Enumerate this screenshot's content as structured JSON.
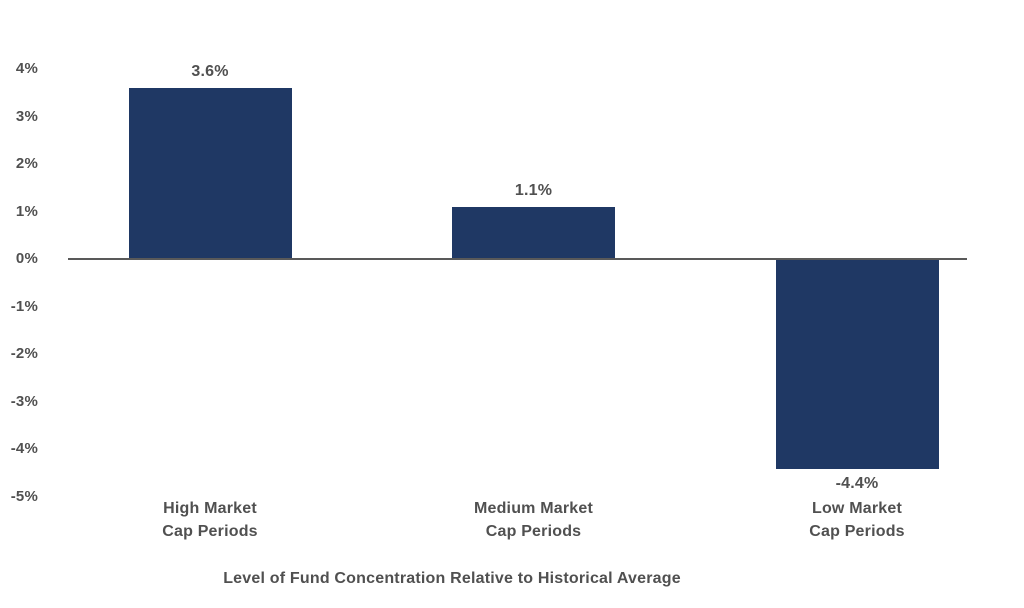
{
  "chart_data": {
    "type": "bar",
    "title": "",
    "xlabel": "Level of Fund Concentration Relative to Historical Average",
    "ylabel": "",
    "categories": [
      {
        "lines": [
          "High Market",
          "Cap Periods"
        ]
      },
      {
        "lines": [
          "Medium Market",
          "Cap Periods"
        ]
      },
      {
        "lines": [
          "Low Market",
          "Cap Periods"
        ]
      }
    ],
    "values": [
      3.6,
      1.1,
      -4.4
    ],
    "value_labels": [
      "3.6%",
      "1.1%",
      "-4.4%"
    ],
    "yticks": [
      {
        "value": 4,
        "label": "4%"
      },
      {
        "value": 3,
        "label": "3%"
      },
      {
        "value": 2,
        "label": "2%"
      },
      {
        "value": 1,
        "label": "1%"
      },
      {
        "value": 0,
        "label": "0%"
      },
      {
        "value": -1,
        "label": "-1%"
      },
      {
        "value": -2,
        "label": "-2%"
      },
      {
        "value": -3,
        "label": "-3%"
      },
      {
        "value": -4,
        "label": "-4%"
      },
      {
        "value": -5,
        "label": "-5%"
      }
    ],
    "ylim": [
      -5,
      4
    ],
    "grid": false,
    "legend": false,
    "bar_color": "#1f3864",
    "zero_line_color": "#595959",
    "text_color": "#505050"
  }
}
